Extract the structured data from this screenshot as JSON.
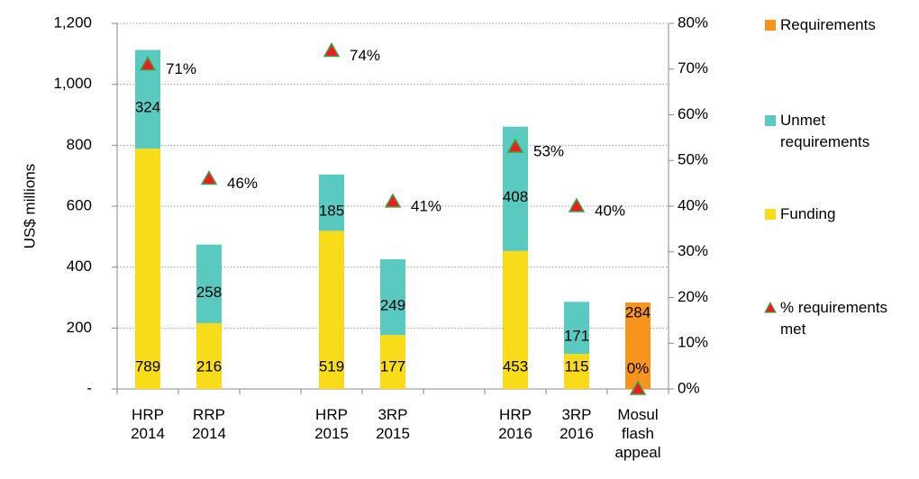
{
  "chart_data": {
    "type": "bar",
    "y_label": "US$ millions",
    "categories": [
      "HRP 2014",
      "RRP 2014",
      null,
      "HRP 2015",
      "3RP 2015",
      null,
      "HRP 2016",
      "3RP 2016",
      "Mosul flash appeal"
    ],
    "series": [
      {
        "name": "Funding",
        "color": "#f8dc1a",
        "values": [
          789,
          216,
          null,
          519,
          177,
          null,
          453,
          115,
          null
        ]
      },
      {
        "name": "Unmet requirements",
        "color": "#5acac1",
        "values": [
          324,
          258,
          null,
          185,
          249,
          null,
          408,
          171,
          null
        ]
      },
      {
        "name": "Requirements",
        "color": "#f7941d",
        "values": [
          null,
          null,
          null,
          null,
          null,
          null,
          null,
          null,
          284
        ]
      },
      {
        "name": "% requirements met",
        "color": "#ee1c1c",
        "axis": "y2",
        "marker": "triangle",
        "values": [
          71,
          46,
          null,
          74,
          41,
          null,
          53,
          40,
          0
        ],
        "value_labels": [
          "71%",
          "46%",
          null,
          "74%",
          "41%",
          null,
          "53%",
          "40%",
          "0%"
        ]
      }
    ],
    "ylim": [
      0,
      1200
    ],
    "yticks": [
      {
        "value": 0,
        "label": "-"
      },
      200,
      400,
      600,
      800,
      {
        "value": 1000,
        "label": "1,000"
      },
      {
        "value": 1200,
        "label": "1,200"
      }
    ],
    "y2lim": [
      0,
      80
    ],
    "y2ticks": [
      {
        "value": 0,
        "label": "0%"
      },
      {
        "value": 10,
        "label": "10%"
      },
      {
        "value": 20,
        "label": "20%"
      },
      {
        "value": 30,
        "label": "30%"
      },
      {
        "value": 40,
        "label": "40%"
      },
      {
        "value": 50,
        "label": "50%"
      },
      {
        "value": 60,
        "label": "60%"
      },
      {
        "value": 70,
        "label": "70%"
      },
      {
        "value": 80,
        "label": "80%"
      }
    ],
    "grid": true
  }
}
